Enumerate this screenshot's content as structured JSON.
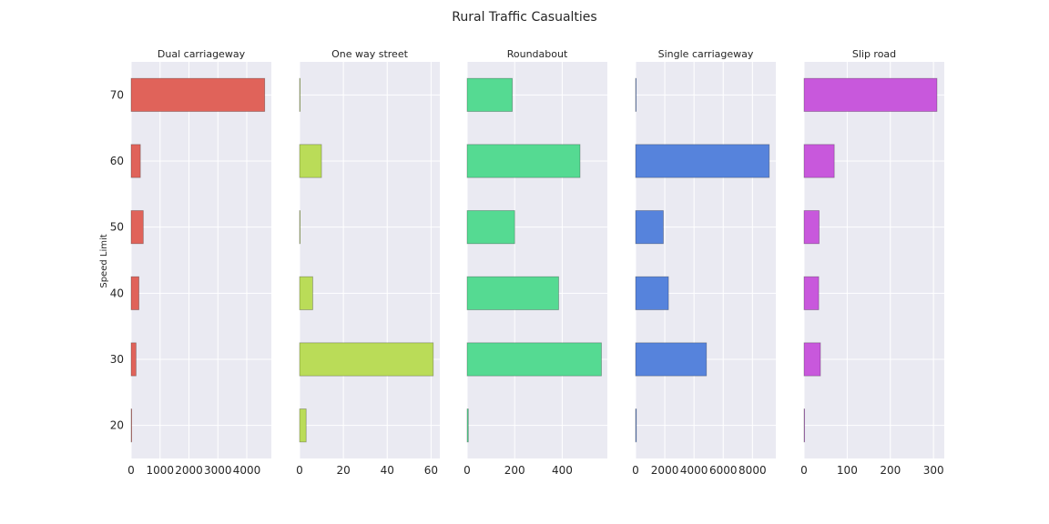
{
  "chart_data": {
    "type": "bar",
    "orientation": "horizontal",
    "title": "Rural Traffic Casualties",
    "ylabel": "Speed Limit",
    "xlabel": "",
    "categories": [
      "20",
      "30",
      "40",
      "50",
      "60",
      "70"
    ],
    "grid": true,
    "panels": [
      {
        "name": "Dual carriageway",
        "color": "#e0635a",
        "values": [
          10,
          170,
          270,
          420,
          320,
          4620
        ],
        "xlim": [
          0,
          4850
        ],
        "xticks": [
          0,
          1000,
          2000,
          3000,
          4000
        ]
      },
      {
        "name": "One way street",
        "color": "#badc58",
        "values": [
          3,
          61,
          6,
          0,
          10,
          0
        ],
        "xlim": [
          0,
          64
        ],
        "xticks": [
          0,
          20,
          40,
          60
        ]
      },
      {
        "name": "Roundabout",
        "color": "#55da92",
        "values": [
          5,
          565,
          385,
          200,
          475,
          190
        ],
        "xlim": [
          0,
          590
        ],
        "xticks": [
          0,
          200,
          400
        ]
      },
      {
        "name": "Single carriageway",
        "color": "#5683dc",
        "values": [
          50,
          4850,
          2250,
          1900,
          9150,
          0
        ],
        "xlim": [
          0,
          9600
        ],
        "xticks": [
          0,
          2000,
          4000,
          6000,
          8000
        ]
      },
      {
        "name": "Slip road",
        "color": "#c858dc",
        "values": [
          0,
          38,
          34,
          35,
          70,
          308
        ],
        "xlim": [
          0,
          325
        ],
        "xticks": [
          0,
          100,
          200,
          300
        ]
      }
    ]
  }
}
